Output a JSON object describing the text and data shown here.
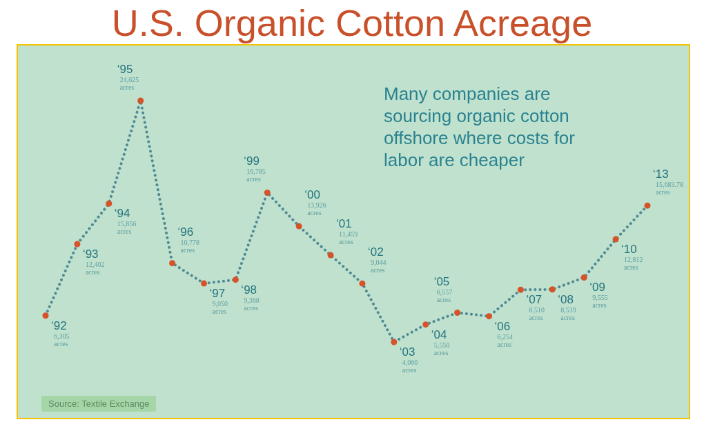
{
  "chart_data": {
    "type": "line",
    "title": "U.S. Organic Cotton Acreage",
    "categories": [
      null,
      null,
      null,
      null,
      null,
      null,
      null,
      null,
      null,
      null,
      null,
      null,
      null,
      null,
      null,
      null,
      null,
      null,
      null,
      null
    ],
    "series": [
      {
        "color": "#4f8a94",
        "values": [
          6305,
          12402,
          15856,
          24625,
          10778,
          9050,
          9368,
          16785,
          13926,
          11459,
          9044,
          4060,
          5550,
          6557,
          6254,
          8510,
          8539,
          9555,
          12812,
          15683.78
        ],
        "value_labels": [
          "‘92 6,305 acres",
          "‘93 12,402 acres",
          "‘94 15,856 acres",
          "‘95 24,625 acres",
          "‘96 10,778 acres",
          "‘97 9,050 acres",
          "‘98 9,368 acres",
          "‘99 16,785 acres",
          "‘00 13,926 acres",
          "‘01 11,459 acres",
          "‘02 9,044 acres",
          "‘03 4,060 acres",
          "‘04 5,550 acres",
          "‘05 6,557 acres",
          "‘06 6,254 acres",
          "‘07 8,510 acres",
          "‘08 8,539 acres",
          "‘09 9,555 acres",
          "‘10 12,812 acres",
          "‘13 15,683.78 acres"
        ]
      }
    ],
    "marker": "circle",
    "line_style": "dotted",
    "grid": false,
    "legend": false,
    "annotations": [
      "Many companies are sourcing organic cotton offshore where costs for labor are cheaper",
      "Source: Textile Exchange"
    ]
  }
}
